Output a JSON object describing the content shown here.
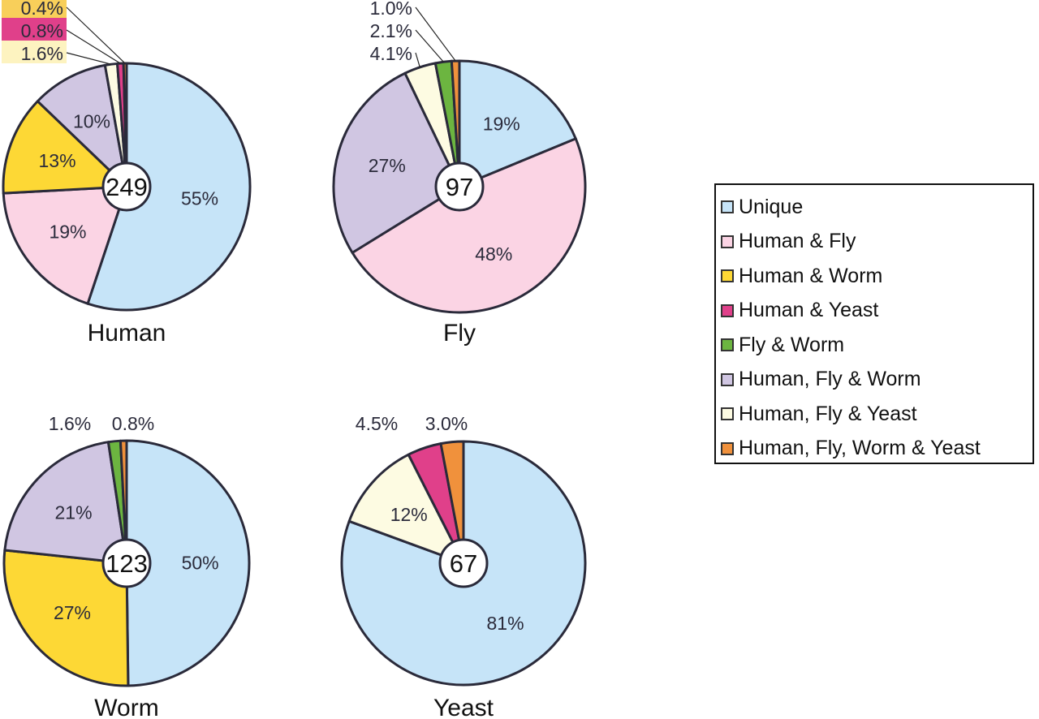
{
  "chart_data": [
    {
      "type": "pie",
      "title": "Human",
      "total": "249",
      "slices": [
        {
          "category": "Unique",
          "value": 55,
          "label": "55%"
        },
        {
          "category": "Human & Fly",
          "value": 19,
          "label": "19%"
        },
        {
          "category": "Human & Worm",
          "value": 13,
          "label": "13%"
        },
        {
          "category": "Human, Fly & Worm",
          "value": 10,
          "label": "10%"
        },
        {
          "category": "Human, Fly & Yeast",
          "value": 1.6,
          "label": "1.6%"
        },
        {
          "category": "Human & Yeast",
          "value": 0.8,
          "label": "0.8%"
        },
        {
          "category": "Human, Fly, Worm & Yeast",
          "value": 0.4,
          "label": "0.4%"
        }
      ]
    },
    {
      "type": "pie",
      "title": "Fly",
      "total": "97",
      "slices": [
        {
          "category": "Unique",
          "value": 19,
          "label": "19%"
        },
        {
          "category": "Human & Fly",
          "value": 48,
          "label": "48%"
        },
        {
          "category": "Human, Fly & Worm",
          "value": 27,
          "label": "27%"
        },
        {
          "category": "Human, Fly & Yeast",
          "value": 4.1,
          "label": "4.1%"
        },
        {
          "category": "Fly & Worm",
          "value": 2.1,
          "label": "2.1%"
        },
        {
          "category": "Human, Fly, Worm & Yeast",
          "value": 1.0,
          "label": "1.0%"
        }
      ]
    },
    {
      "type": "pie",
      "title": "Worm",
      "total": "123",
      "slices": [
        {
          "category": "Unique",
          "value": 50,
          "label": "50%"
        },
        {
          "category": "Human & Worm",
          "value": 27,
          "label": "27%"
        },
        {
          "category": "Human, Fly & Worm",
          "value": 21,
          "label": "21%"
        },
        {
          "category": "Fly & Worm",
          "value": 1.6,
          "label": "1.6%"
        },
        {
          "category": "Human, Fly, Worm & Yeast",
          "value": 0.8,
          "label": "0.8%"
        }
      ]
    },
    {
      "type": "pie",
      "title": "Yeast",
      "total": "67",
      "slices": [
        {
          "category": "Unique",
          "value": 81,
          "label": "81%"
        },
        {
          "category": "Human, Fly & Yeast",
          "value": 12,
          "label": "12%"
        },
        {
          "category": "Human & Yeast",
          "value": 4.5,
          "label": "4.5%"
        },
        {
          "category": "Human, Fly, Worm & Yeast",
          "value": 3.0,
          "label": "3.0%"
        }
      ]
    }
  ],
  "legend": {
    "placement": "right",
    "items": [
      {
        "label": "Unique",
        "color": "#c6e4f8"
      },
      {
        "label": "Human & Fly",
        "color": "#fbd4e4"
      },
      {
        "label": "Human & Worm",
        "color": "#fdd835"
      },
      {
        "label": "Human & Yeast",
        "color": "#e0408a"
      },
      {
        "label": "Fly & Worm",
        "color": "#6cb540"
      },
      {
        "label": "Human, Fly & Worm",
        "color": "#d0c6e2"
      },
      {
        "label": "Human, Fly & Yeast",
        "color": "#fdfbe2"
      },
      {
        "label": "Human, Fly, Worm & Yeast",
        "color": "#f0913c"
      }
    ]
  }
}
